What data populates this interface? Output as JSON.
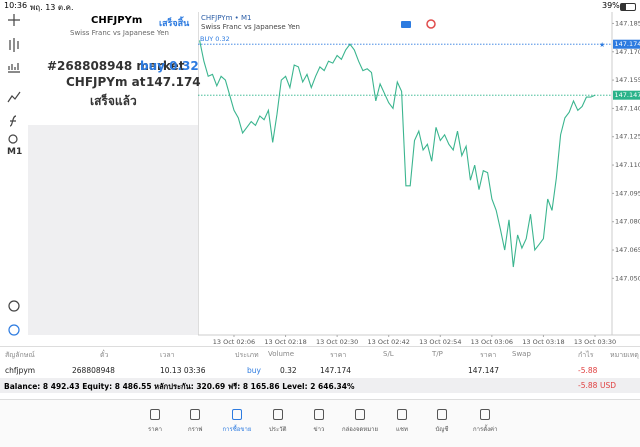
{
  "status_bar": {
    "time": "10:36",
    "date": "พฤ. 13 ต.ค.",
    "battery": "39%"
  },
  "toolbar": {
    "timeframe": "M1"
  },
  "order_panel": {
    "symbol": "CHFJPYm",
    "done_button": "เสร็จสิ้น",
    "description": "Swiss Franc vs Japanese Yen",
    "order_text": "#268808948 market",
    "order_action": "buy 0.32",
    "price_text": "CHFJPYm at",
    "price": "147.174",
    "status": "เสร็จแล้ว"
  },
  "chart_data": {
    "type": "line",
    "title": "CHFJPYm • M1",
    "subtitle": "Swiss Franc vs Japanese Yen",
    "color": "#3bb58f",
    "categories": [
      null,
      null,
      null,
      null,
      null,
      null,
      null,
      null,
      "13 Oct 02:06",
      null,
      null,
      null,
      null,
      null,
      null,
      null,
      null,
      null,
      null,
      null,
      "13 Oct 02:18",
      null,
      null,
      null,
      null,
      null,
      null,
      null,
      null,
      null,
      null,
      null,
      "13 Oct 02:30",
      null,
      null,
      null,
      null,
      null,
      null,
      null,
      null,
      null,
      null,
      null,
      "13 Oct 02:42",
      null,
      null,
      null,
      null,
      null,
      null,
      null,
      null,
      null,
      null,
      null,
      "13 Oct 02:54",
      null,
      null,
      null,
      null,
      null,
      null,
      null,
      null,
      null,
      null,
      null,
      "13 Oct 03:06",
      null,
      null,
      null,
      null,
      null,
      null,
      null,
      null,
      null,
      null,
      null,
      "13 Oct 03:18",
      null,
      null,
      null,
      null,
      null,
      null,
      null,
      null,
      null,
      null,
      null,
      "13 Oct 03:30"
    ],
    "values": [
      147.176,
      147.165,
      147.157,
      147.158,
      147.152,
      147.157,
      147.155,
      147.147,
      147.139,
      147.135,
      147.127,
      147.13,
      147.133,
      147.131,
      147.136,
      147.134,
      147.139,
      147.122,
      147.137,
      147.155,
      147.157,
      147.151,
      147.163,
      147.162,
      147.154,
      147.158,
      147.151,
      147.157,
      147.162,
      147.16,
      147.165,
      147.164,
      147.168,
      147.166,
      147.171,
      147.174,
      147.171,
      147.165,
      147.16,
      147.161,
      147.159,
      147.144,
      147.153,
      147.148,
      147.143,
      147.14,
      147.154,
      147.149,
      147.099,
      147.099,
      147.123,
      147.128,
      147.118,
      147.121,
      147.112,
      147.13,
      147.123,
      147.126,
      147.121,
      147.118,
      147.128,
      147.115,
      147.12,
      147.102,
      147.11,
      147.097,
      147.107,
      147.106,
      147.092,
      147.086,
      147.076,
      147.065,
      147.081,
      147.056,
      147.073,
      147.066,
      147.071,
      147.084,
      147.065,
      147.068,
      147.071,
      147.092,
      147.086,
      147.103,
      147.126,
      147.135,
      147.138,
      147.144,
      147.139,
      147.141,
      147.146,
      147.146,
      147.147
    ],
    "ylim": [
      147.02,
      147.19
    ],
    "yticks": [
      147.185,
      {
        "value": 147.17,
        "label": "147.170"
      },
      147.155,
      {
        "value": 147.14,
        "label": "147.140"
      },
      147.125,
      {
        "value": 147.11,
        "label": "147.110"
      },
      147.095,
      {
        "value": 147.08,
        "label": "147.080"
      },
      147.065,
      {
        "value": 147.05,
        "label": "147.050"
      }
    ],
    "price_lines": [
      {
        "label": "BUY 0.32",
        "value": 147.174,
        "color": "#2d7be0"
      },
      {
        "value": 147.147,
        "color": "#2bb38a"
      }
    ],
    "grid": false
  },
  "positions": {
    "columns": [
      "สัญลักษณ์",
      "ตั๋ว",
      "เวลา",
      "ประเภท",
      "Volume",
      "ราคา",
      "S/L",
      "T/P",
      "ราคา",
      "Swap",
      "กำไร",
      "หมายเหตุ"
    ],
    "row": [
      "chfjpym",
      "268808948",
      "10.13 03:36",
      "buy",
      "0.32",
      "147.174",
      "147.147",
      "-5.88"
    ]
  },
  "balance": {
    "text": "Balance: 8 492.43 Equity: 8 486.55 หลักประกัน: 320.69 ฟรี: 8 165.86 Level: 2 646.34%",
    "profit": "-5.88",
    "currency": "USD"
  },
  "tabs": [
    "ราคา",
    "กราฟ",
    "การซื้อขาย",
    "ประวัติ",
    "ข่าว",
    "กล่องจดหมาย",
    "แชท",
    "บัญชี",
    "การตั้งค่า"
  ]
}
